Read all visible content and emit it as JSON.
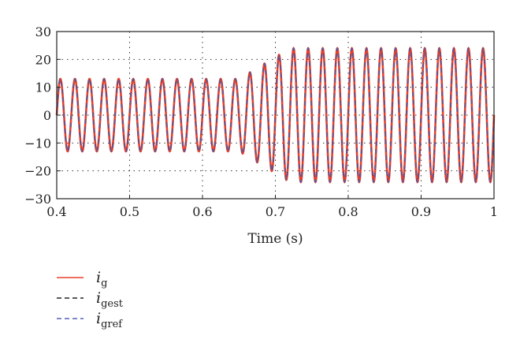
{
  "chart_data": {
    "type": "line",
    "title": "",
    "xlabel": "Time (s)",
    "ylabel": "",
    "xlim": [
      0.4,
      1.0
    ],
    "ylim": [
      -30,
      30
    ],
    "xticks": [
      0.4,
      0.5,
      0.6,
      0.7,
      0.8,
      0.9,
      1.0
    ],
    "xtick_labels": [
      "0.4",
      "0.5",
      "0.6",
      "0.7",
      "0.8",
      "0.9",
      "1"
    ],
    "yticks": [
      30,
      20,
      10,
      0,
      -10,
      -20,
      -30
    ],
    "ytick_labels": [
      "30",
      "20",
      "10",
      "0",
      "−10",
      "−20",
      "−30"
    ],
    "grid": "dotted",
    "legend_position": "below-left",
    "signal": {
      "frequency_hz": 50,
      "segments": [
        {
          "t_start": 0.4,
          "t_end": 0.65,
          "amplitude": 13
        },
        {
          "t_start": 0.65,
          "t_end": 0.72,
          "amplitude_start": 13,
          "amplitude_end": 24
        },
        {
          "t_start": 0.72,
          "t_end": 1.0,
          "amplitude": 24
        }
      ]
    },
    "series": [
      {
        "name": "i",
        "subscript": "g",
        "color": "#e8412c",
        "dash": "solid"
      },
      {
        "name": "i",
        "subscript": "gest",
        "color": "#222222",
        "dash": "dashed"
      },
      {
        "name": "i",
        "subscript": "gref",
        "color": "#5561b8",
        "dash": "dashed"
      }
    ]
  }
}
